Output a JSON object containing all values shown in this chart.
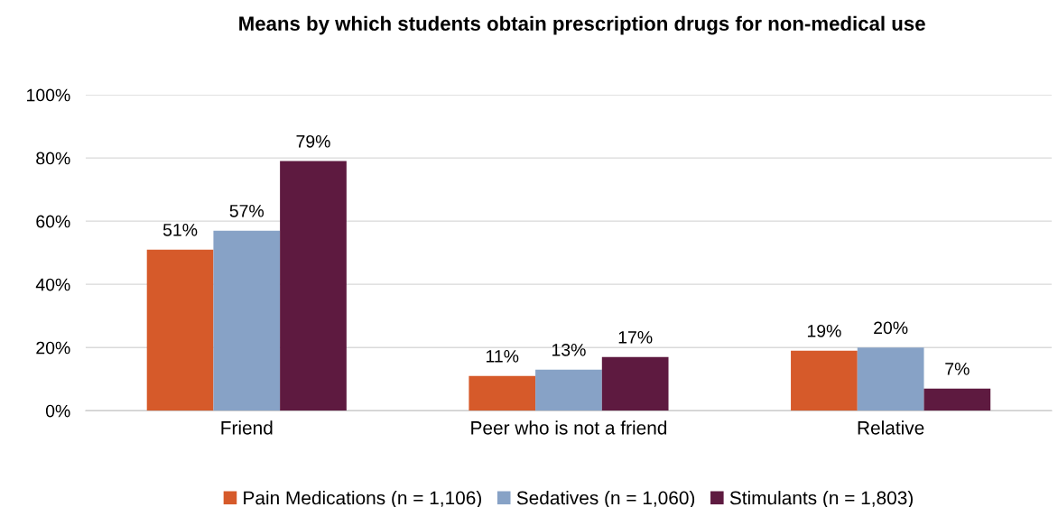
{
  "chart_data": {
    "type": "bar",
    "title": "Means by which students obtain prescription drugs for non-medical use",
    "categories": [
      "Friend",
      "Peer who is not a friend",
      "Relative"
    ],
    "series": [
      {
        "name": "Pain Medications (n = 1,106)",
        "color": "#d65a2a",
        "values": [
          51,
          11,
          19
        ]
      },
      {
        "name": "Sedatives (n = 1,060)",
        "color": "#87a2c6",
        "values": [
          57,
          13,
          20
        ]
      },
      {
        "name": "Stimulants (n = 1,803)",
        "color": "#5e1a40",
        "values": [
          79,
          17,
          7
        ]
      }
    ],
    "value_labels": [
      [
        "51%",
        "11%",
        "19%"
      ],
      [
        "57%",
        "13%",
        "20%"
      ],
      [
        "79%",
        "17%",
        "7%"
      ]
    ],
    "ylim": [
      0,
      100
    ],
    "yticks": [
      {
        "value": 0,
        "label": "0%"
      },
      {
        "value": 20,
        "label": "20%"
      },
      {
        "value": 40,
        "label": "40%"
      },
      {
        "value": 60,
        "label": "60%"
      },
      {
        "value": 80,
        "label": "80%"
      },
      {
        "value": 100,
        "label": "100%"
      }
    ],
    "grid": "y",
    "legend": "bottom"
  }
}
